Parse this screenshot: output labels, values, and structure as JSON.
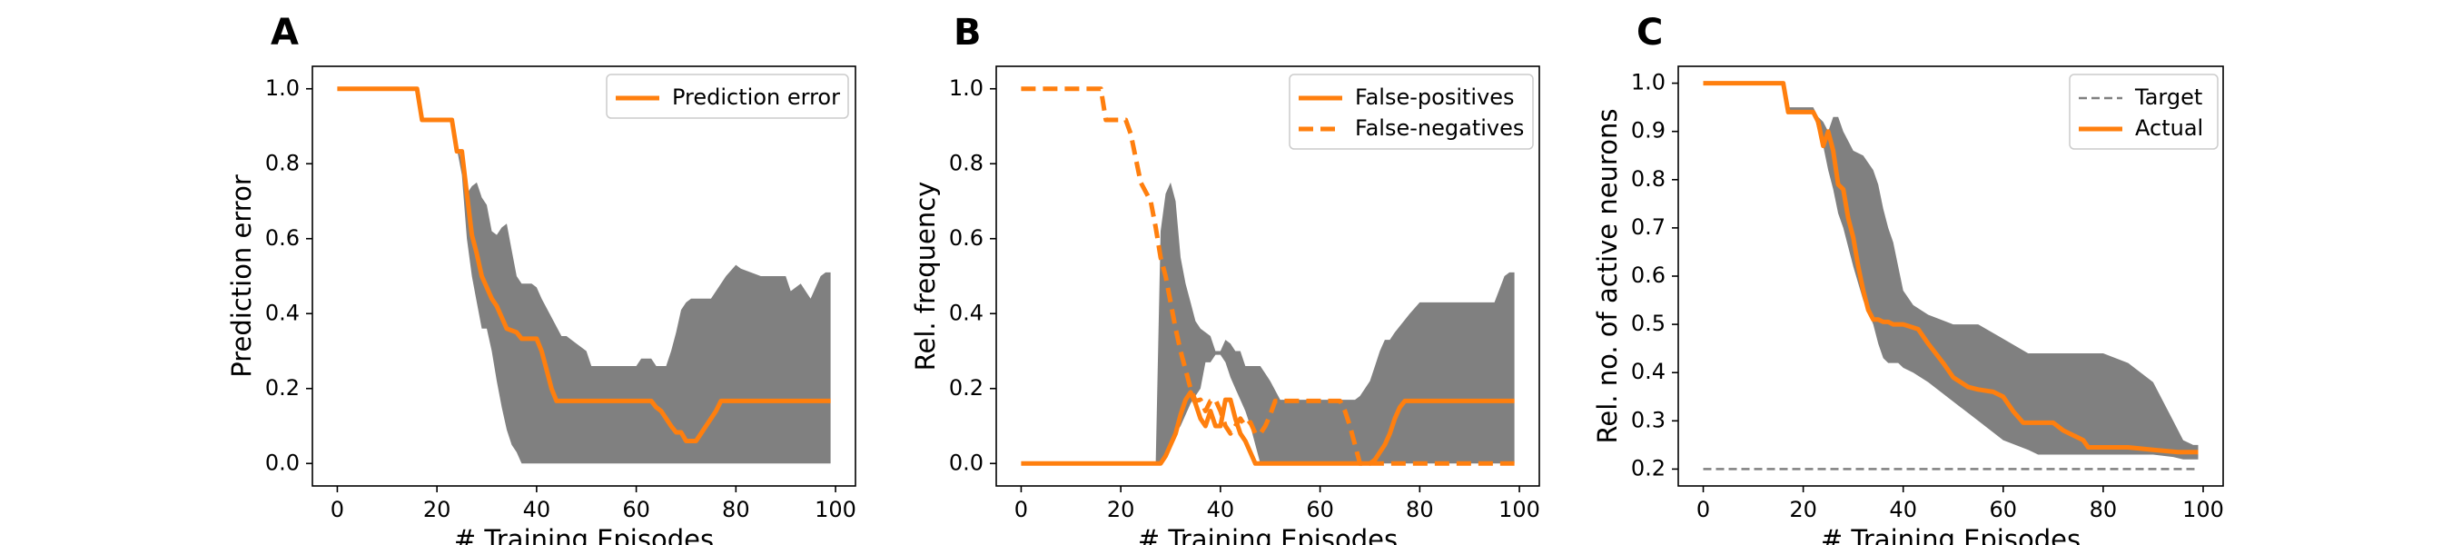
{
  "colors": {
    "orange": "#ff7f0e",
    "band": "#808080",
    "target": "#808080"
  },
  "chart_data": [
    {
      "panel": "A",
      "type": "line",
      "xlabel": "# Training Episodes",
      "ylabel": "Prediction error",
      "xlim": [
        -5,
        104
      ],
      "ylim": [
        -0.06,
        1.06
      ],
      "xticks": [
        0,
        20,
        40,
        60,
        80,
        100
      ],
      "yticks": [
        0.0,
        0.2,
        0.4,
        0.6,
        0.8,
        1.0
      ],
      "ytick_decimals": 1,
      "grid": false,
      "legend_position": "top-right",
      "band": {
        "x": [
          0,
          16,
          17,
          23,
          24,
          25,
          26,
          27,
          28,
          29,
          30,
          31,
          32,
          33,
          34,
          35,
          36,
          37,
          38,
          39,
          40,
          41,
          45,
          46,
          50,
          51,
          55,
          60,
          61,
          62,
          63,
          64,
          65,
          66,
          67,
          68,
          69,
          70,
          71,
          72,
          75,
          78,
          80,
          81,
          85,
          88,
          90,
          91,
          93,
          95,
          97,
          98,
          99
        ],
        "upper": [
          1.0,
          1.0,
          0.92,
          0.92,
          0.86,
          0.8,
          0.72,
          0.74,
          0.75,
          0.71,
          0.69,
          0.62,
          0.61,
          0.63,
          0.64,
          0.57,
          0.5,
          0.48,
          0.48,
          0.48,
          0.47,
          0.44,
          0.34,
          0.34,
          0.3,
          0.26,
          0.26,
          0.26,
          0.28,
          0.28,
          0.28,
          0.26,
          0.26,
          0.26,
          0.3,
          0.35,
          0.41,
          0.43,
          0.44,
          0.44,
          0.44,
          0.5,
          0.53,
          0.52,
          0.5,
          0.5,
          0.5,
          0.46,
          0.48,
          0.44,
          0.5,
          0.51,
          0.51
        ],
        "lower": [
          1.0,
          1.0,
          0.92,
          0.92,
          0.84,
          0.77,
          0.6,
          0.5,
          0.43,
          0.36,
          0.36,
          0.3,
          0.22,
          0.15,
          0.09,
          0.05,
          0.03,
          0.0,
          0.0,
          0.0,
          0.0,
          0.0,
          0.0,
          0.0,
          0.0,
          0.0,
          0.0,
          0.0,
          0.0,
          0.0,
          0.0,
          0.0,
          0.0,
          0.0,
          0.0,
          0.0,
          0.0,
          0.0,
          0.0,
          0.0,
          0.0,
          0.0,
          0.0,
          0.0,
          0.0,
          0.0,
          0.0,
          0.0,
          0.0,
          0.0,
          0.0,
          0.0,
          0.0
        ]
      },
      "series": [
        {
          "name": "Prediction error",
          "style": "solid",
          "x": [
            0,
            16,
            17,
            23,
            24,
            25,
            26,
            27,
            28,
            29,
            30,
            31,
            32,
            33,
            34,
            36,
            37,
            40,
            41,
            42,
            43,
            44,
            63,
            64,
            65,
            66,
            67,
            68,
            69,
            70,
            71,
            72,
            73,
            74,
            75,
            76,
            77,
            99
          ],
          "y": [
            1.0,
            1.0,
            0.917,
            0.917,
            0.833,
            0.833,
            0.72,
            0.61,
            0.56,
            0.5,
            0.47,
            0.44,
            0.42,
            0.39,
            0.36,
            0.35,
            0.333,
            0.333,
            0.3,
            0.25,
            0.2,
            0.167,
            0.167,
            0.15,
            0.14,
            0.12,
            0.1,
            0.083,
            0.083,
            0.06,
            0.06,
            0.06,
            0.08,
            0.1,
            0.12,
            0.14,
            0.167,
            0.167
          ]
        }
      ]
    },
    {
      "panel": "B",
      "type": "line",
      "xlabel": "# Training Episodes",
      "ylabel": "Rel. frequency",
      "xlim": [
        -5,
        104
      ],
      "ylim": [
        -0.06,
        1.06
      ],
      "xticks": [
        0,
        20,
        40,
        60,
        80,
        100
      ],
      "yticks": [
        0.0,
        0.2,
        0.4,
        0.6,
        0.8,
        1.0
      ],
      "ytick_decimals": 1,
      "grid": false,
      "legend_position": "top-right",
      "band": {
        "x": [
          0,
          27,
          28,
          29,
          30,
          31,
          32,
          33,
          34,
          35,
          36,
          37,
          38,
          39,
          40,
          41,
          42,
          43,
          44,
          45,
          46,
          47,
          48,
          49,
          50,
          52,
          55,
          60,
          61,
          62,
          63,
          64,
          65,
          66,
          67,
          68,
          69,
          70,
          71,
          72,
          73,
          74,
          75,
          78,
          80,
          85,
          90,
          95,
          97,
          98,
          99
        ],
        "upper": [
          0.0,
          0.0,
          0.62,
          0.72,
          0.75,
          0.7,
          0.55,
          0.48,
          0.43,
          0.38,
          0.36,
          0.35,
          0.34,
          0.3,
          0.3,
          0.33,
          0.32,
          0.3,
          0.3,
          0.26,
          0.26,
          0.26,
          0.26,
          0.24,
          0.22,
          0.17,
          0.17,
          0.17,
          0.17,
          0.17,
          0.17,
          0.17,
          0.17,
          0.17,
          0.17,
          0.18,
          0.2,
          0.22,
          0.26,
          0.3,
          0.33,
          0.33,
          0.35,
          0.4,
          0.43,
          0.43,
          0.43,
          0.43,
          0.5,
          0.51,
          0.51
        ],
        "lower": [
          0.0,
          0.0,
          0.0,
          0.02,
          0.05,
          0.08,
          0.1,
          0.13,
          0.16,
          0.18,
          0.2,
          0.27,
          0.27,
          0.29,
          0.29,
          0.27,
          0.23,
          0.2,
          0.17,
          0.14,
          0.1,
          0.05,
          0.0,
          0.0,
          0.0,
          0.0,
          0.0,
          0.0,
          0.0,
          0.0,
          0.0,
          0.0,
          0.0,
          0.0,
          0.0,
          0.0,
          0.0,
          0.0,
          0.0,
          0.0,
          0.0,
          0.0,
          0.0,
          0.0,
          0.0,
          0.0,
          0.0,
          0.0,
          0.0,
          0.0,
          0.0
        ]
      },
      "series": [
        {
          "name": "False-positives",
          "style": "solid",
          "x": [
            0,
            28,
            29,
            30,
            31,
            32,
            33,
            34,
            35,
            36,
            37,
            38,
            39,
            40,
            41,
            42,
            43,
            44,
            45,
            46,
            47,
            48,
            70,
            71,
            72,
            73,
            74,
            75,
            76,
            77,
            78,
            99
          ],
          "y": [
            0.0,
            0.0,
            0.02,
            0.05,
            0.08,
            0.13,
            0.17,
            0.19,
            0.16,
            0.12,
            0.1,
            0.14,
            0.1,
            0.1,
            0.17,
            0.17,
            0.12,
            0.08,
            0.06,
            0.03,
            0.0,
            0.0,
            0.0,
            0.01,
            0.03,
            0.05,
            0.08,
            0.12,
            0.15,
            0.167,
            0.167,
            0.167
          ]
        },
        {
          "name": "False-negatives",
          "style": "dashed",
          "x": [
            0,
            16,
            17,
            21,
            22,
            24,
            26,
            27,
            28,
            29,
            30,
            31,
            32,
            33,
            34,
            35,
            36,
            37,
            38,
            39,
            40,
            41,
            42,
            43,
            44,
            45,
            46,
            47,
            48,
            49,
            50,
            51,
            52,
            53,
            54,
            55,
            60,
            64,
            65,
            66,
            67,
            68,
            69,
            70,
            99
          ],
          "y": [
            1.0,
            1.0,
            0.917,
            0.917,
            0.88,
            0.75,
            0.7,
            0.63,
            0.55,
            0.5,
            0.43,
            0.36,
            0.3,
            0.25,
            0.2,
            0.167,
            0.17,
            0.14,
            0.167,
            0.17,
            0.14,
            0.1,
            0.08,
            0.1,
            0.12,
            0.1,
            0.11,
            0.08,
            0.08,
            0.1,
            0.13,
            0.167,
            0.167,
            0.167,
            0.167,
            0.167,
            0.167,
            0.167,
            0.14,
            0.1,
            0.05,
            0.0,
            0.0,
            0.0,
            0.0
          ]
        }
      ]
    },
    {
      "panel": "C",
      "type": "line",
      "xlabel": "# Training Episodes",
      "ylabel": "Rel. no. of active neurons",
      "xlim": [
        -5,
        104
      ],
      "ylim": [
        0.165,
        1.035
      ],
      "xticks": [
        0,
        20,
        40,
        60,
        80,
        100
      ],
      "yticks": [
        0.2,
        0.3,
        0.4,
        0.5,
        0.6,
        0.7,
        0.8,
        0.9,
        1.0
      ],
      "ytick_decimals": 1,
      "grid": false,
      "legend_position": "top-right",
      "band": {
        "x": [
          0,
          16,
          17,
          22,
          23,
          24,
          25,
          26,
          27,
          28,
          30,
          32,
          34,
          35,
          36,
          37,
          38,
          39,
          40,
          42,
          45,
          50,
          55,
          60,
          65,
          67,
          70,
          80,
          85,
          90,
          94,
          96,
          98,
          99
        ],
        "upper": [
          1.0,
          1.0,
          0.95,
          0.95,
          0.93,
          0.92,
          0.9,
          0.93,
          0.93,
          0.9,
          0.86,
          0.85,
          0.82,
          0.79,
          0.74,
          0.7,
          0.67,
          0.62,
          0.57,
          0.54,
          0.52,
          0.5,
          0.5,
          0.47,
          0.44,
          0.44,
          0.44,
          0.44,
          0.42,
          0.38,
          0.3,
          0.26,
          0.25,
          0.25
        ],
        "lower": [
          1.0,
          1.0,
          0.94,
          0.94,
          0.9,
          0.87,
          0.82,
          0.78,
          0.73,
          0.7,
          0.62,
          0.55,
          0.5,
          0.46,
          0.43,
          0.42,
          0.42,
          0.42,
          0.41,
          0.4,
          0.38,
          0.34,
          0.3,
          0.26,
          0.24,
          0.23,
          0.23,
          0.23,
          0.23,
          0.23,
          0.225,
          0.22,
          0.22,
          0.22
        ]
      },
      "series": [
        {
          "name": "Target",
          "style": "dashed-thin",
          "x": [
            0,
            99
          ],
          "y": [
            0.2,
            0.2
          ]
        },
        {
          "name": "Actual",
          "style": "solid",
          "x": [
            0,
            16,
            17,
            22,
            23,
            24,
            25,
            26,
            27,
            28,
            29,
            30,
            31,
            32,
            33,
            34,
            35,
            36,
            37,
            38,
            40,
            43,
            45,
            48,
            50,
            53,
            55,
            58,
            60,
            62,
            64,
            66,
            67,
            70,
            72,
            74,
            76,
            77,
            80,
            85,
            90,
            95,
            99
          ],
          "y": [
            1.0,
            1.0,
            0.94,
            0.94,
            0.92,
            0.87,
            0.9,
            0.86,
            0.79,
            0.78,
            0.72,
            0.68,
            0.62,
            0.57,
            0.53,
            0.51,
            0.51,
            0.505,
            0.505,
            0.5,
            0.5,
            0.49,
            0.46,
            0.42,
            0.39,
            0.37,
            0.365,
            0.36,
            0.35,
            0.32,
            0.296,
            0.296,
            0.296,
            0.296,
            0.28,
            0.27,
            0.26,
            0.245,
            0.245,
            0.245,
            0.24,
            0.235,
            0.235
          ]
        }
      ]
    }
  ]
}
